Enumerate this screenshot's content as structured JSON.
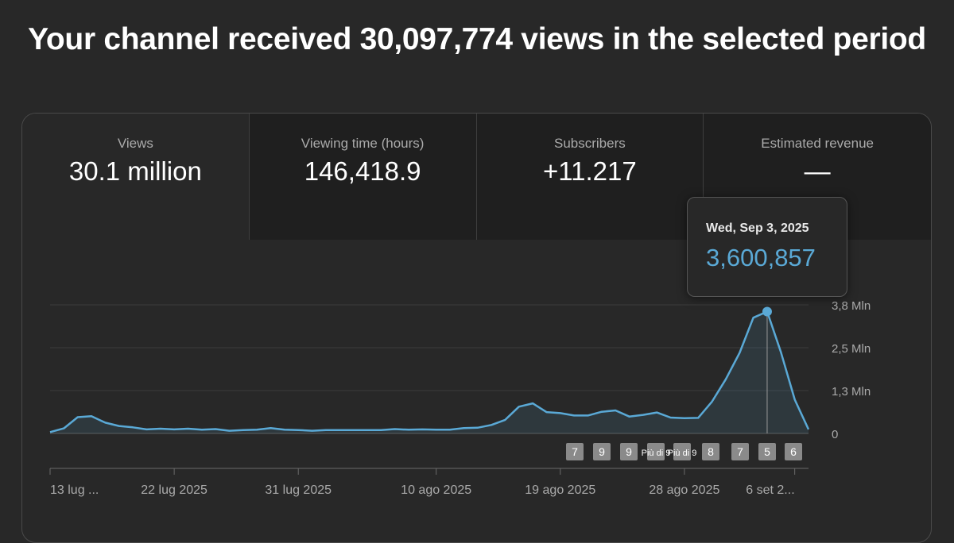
{
  "headline": "Your channel received 30,097,774 views in the selected period",
  "metrics": [
    {
      "label": "Views",
      "value": "30.1 million"
    },
    {
      "label": "Viewing time (hours)",
      "value": "146,418.9"
    },
    {
      "label": "Subscribers",
      "value": "+11.217"
    },
    {
      "label": "Estimated revenue",
      "value": "—"
    }
  ],
  "tooltip": {
    "date": "Wed, Sep 3, 2025",
    "value": "3,600,857"
  },
  "chart_data": {
    "type": "area",
    "y_tick_labels": [
      "0",
      "1,3 Mln",
      "2,5 Mln",
      "3,8 Mln"
    ],
    "y_ticks": [
      0,
      1266667,
      2533333,
      3800000
    ],
    "ylim": [
      0,
      3800000
    ],
    "x_tick_labels": [
      "13 lug ...",
      "22 lug 2025",
      "31 lug 2025",
      "10 ago 2025",
      "19 ago 2025",
      "28 ago 2025",
      "6 set 2..."
    ],
    "x_tick_index": [
      0,
      9,
      18,
      28,
      37,
      46,
      54
    ],
    "series": [
      {
        "color": "#5aa9d6",
        "values": [
          40000,
          150000,
          480000,
          510000,
          320000,
          220000,
          180000,
          120000,
          140000,
          120000,
          140000,
          110000,
          130000,
          80000,
          100000,
          110000,
          160000,
          110000,
          100000,
          80000,
          100000,
          100000,
          100000,
          100000,
          100000,
          130000,
          110000,
          120000,
          110000,
          110000,
          160000,
          170000,
          250000,
          400000,
          790000,
          890000,
          630000,
          600000,
          530000,
          530000,
          640000,
          680000,
          500000,
          550000,
          620000,
          470000,
          450000,
          460000,
          940000,
          1600000,
          2380000,
          3420000,
          3600857,
          2400000,
          1000000,
          120000
        ]
      }
    ],
    "highlight_index": 52,
    "annotation_markers": [
      "7",
      "9",
      "9",
      "Più di 9",
      "Più di 9",
      "8",
      "7",
      "5",
      "6"
    ]
  }
}
